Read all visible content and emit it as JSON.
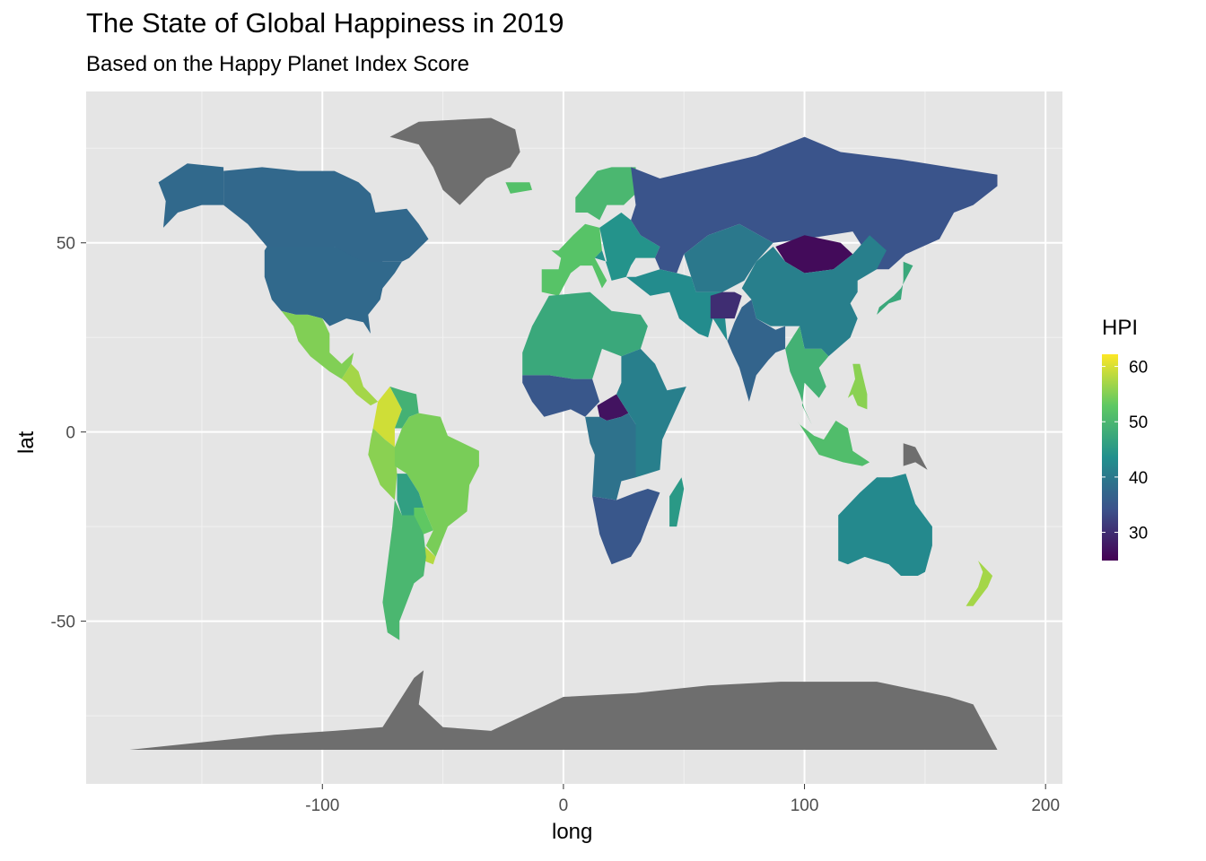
{
  "title": "The State of Global Happiness in 2019",
  "subtitle": "Based on the Happy Planet Index Score",
  "chart_data": {
    "type": "choropleth-map",
    "projection": "equirectangular",
    "xlabel": "long",
    "ylabel": "lat",
    "xlim": [
      -198,
      207
    ],
    "ylim": [
      -93,
      90
    ],
    "x_ticks": [
      -100,
      0,
      100,
      200
    ],
    "x_tick_labels": [
      "-100",
      "0",
      "100",
      "200"
    ],
    "y_ticks": [
      -50,
      0,
      50
    ],
    "y_tick_labels": [
      "-50",
      "0",
      "50"
    ],
    "panel_background": "#e5e5e5",
    "grid": true,
    "missing_color": "#6e6e6e",
    "legend": {
      "title": "HPI",
      "placement": "right",
      "range": [
        24.9,
        62.2
      ],
      "ticks": [
        30,
        40,
        50,
        60
      ],
      "tick_labels": [
        "30",
        "40",
        "50",
        "60"
      ],
      "palette": [
        "#440154",
        "#3b528b",
        "#21908d",
        "#5dc863",
        "#fde725"
      ]
    },
    "regions": [
      {
        "name": "Canada",
        "hpi": 37.5
      },
      {
        "name": "Alaska (USA)",
        "hpi": 37.7
      },
      {
        "name": "USA",
        "hpi": 37.7
      },
      {
        "name": "Mexico",
        "hpi": 55.0
      },
      {
        "name": "Central America",
        "hpi": 57.0
      },
      {
        "name": "Colombia",
        "hpi": 59.5
      },
      {
        "name": "Venezuela",
        "hpi": 49.0
      },
      {
        "name": "Ecuador / Peru",
        "hpi": 55.5
      },
      {
        "name": "Brazil",
        "hpi": 54.5
      },
      {
        "name": "Bolivia",
        "hpi": 46.0
      },
      {
        "name": "Paraguay",
        "hpi": 53.0
      },
      {
        "name": "Uruguay",
        "hpi": 58.0
      },
      {
        "name": "Argentina / Chile",
        "hpi": 50.0
      },
      {
        "name": "Greenland",
        "hpi": null
      },
      {
        "name": "Iceland",
        "hpi": 51.5
      },
      {
        "name": "Scandinavia",
        "hpi": 50.0
      },
      {
        "name": "Western Europe",
        "hpi": 52.0
      },
      {
        "name": "Eastern Europe",
        "hpi": 44.0
      },
      {
        "name": "Russia",
        "hpi": 34.5
      },
      {
        "name": "Central Asia",
        "hpi": 40.0
      },
      {
        "name": "Mongolia",
        "hpi": 26.0
      },
      {
        "name": "China",
        "hpi": 41.0
      },
      {
        "name": "Japan",
        "hpi": 47.5
      },
      {
        "name": "India",
        "hpi": 37.0
      },
      {
        "name": "Southeast Asia",
        "hpi": 49.0
      },
      {
        "name": "Indonesia",
        "hpi": 51.0
      },
      {
        "name": "Philippines",
        "hpi": 55.5
      },
      {
        "name": "Papua New Guinea",
        "hpi": null
      },
      {
        "name": "Australia",
        "hpi": 42.5
      },
      {
        "name": "New Zealand",
        "hpi": 57.0
      },
      {
        "name": "North Africa",
        "hpi": 47.5
      },
      {
        "name": "Middle East",
        "hpi": 43.0
      },
      {
        "name": "Afghanistan",
        "hpi": 30.0
      },
      {
        "name": "West Africa",
        "hpi": 35.0
      },
      {
        "name": "Central African Rep.",
        "hpi": 27.0
      },
      {
        "name": "Central Africa",
        "hpi": 39.0
      },
      {
        "name": "East Africa",
        "hpi": 41.0
      },
      {
        "name": "Southern Africa",
        "hpi": 35.0
      },
      {
        "name": "Madagascar",
        "hpi": 45.0
      },
      {
        "name": "Antarctica",
        "hpi": null
      }
    ]
  }
}
